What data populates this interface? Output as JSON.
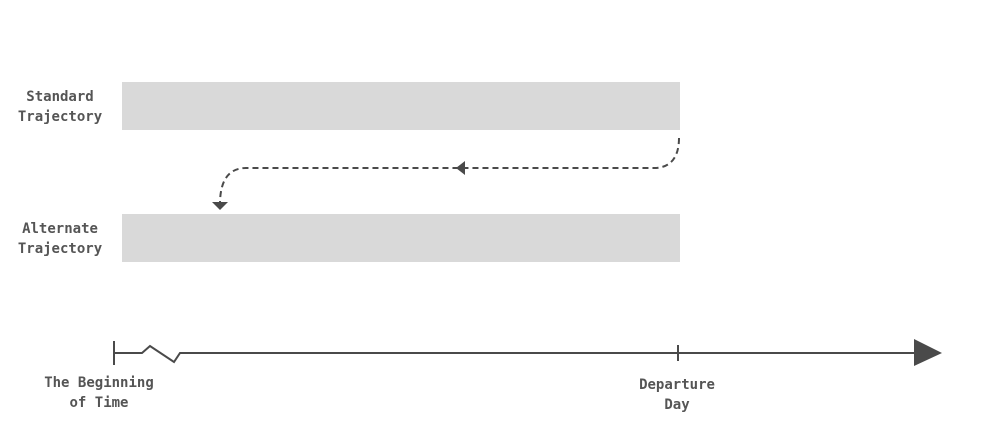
{
  "rows": [
    {
      "label_line1": "Standard",
      "label_line2": "Trajectory"
    },
    {
      "label_line1": "Alternate",
      "label_line2": "Trajectory"
    }
  ],
  "timeline": {
    "start_label_line1": "The Beginning",
    "start_label_line2": "of Time",
    "marker_label_line1": "Departure",
    "marker_label_line2": "Day"
  },
  "colors": {
    "bar": "#d9d9d9",
    "line": "#4a4a4a",
    "text": "#555555",
    "background": "#ffffff"
  }
}
